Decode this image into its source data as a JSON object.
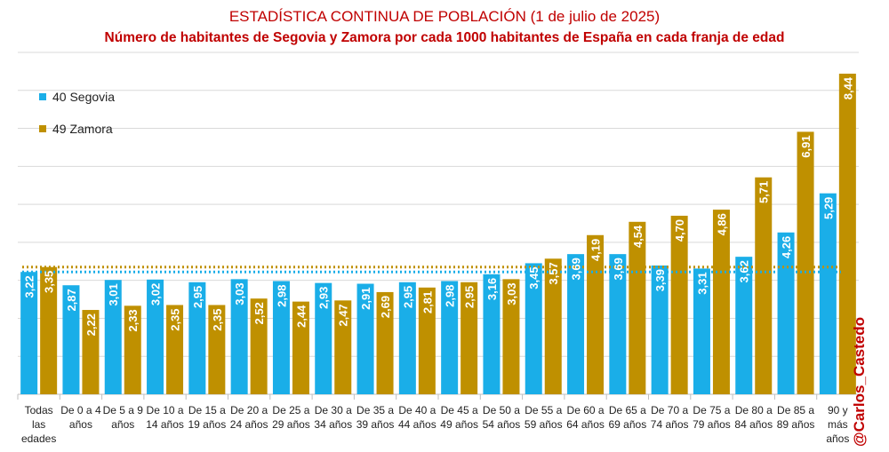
{
  "title": "ESTADÍSTICA CONTINUA DE POBLACIÓN (1 de julio de 2025)",
  "subtitle": "Número de habitantes de Segovia y Zamora por cada 1000 habitantes de España en cada franja de edad",
  "watermark": "@Carlos_Castedo",
  "colors": {
    "segovia": "#1AAEE8",
    "zamora": "#BF9000",
    "grid": "#d9d9d9",
    "axis": "#bfbfbf"
  },
  "chart_data": {
    "type": "bar",
    "title": "ESTADÍSTICA CONTINUA DE POBLACIÓN (1 de julio de 2025)",
    "subtitle": "Número de habitantes de Segovia y Zamora por cada 1000 habitantes de España en cada franja de edad",
    "categories": [
      [
        "Todas",
        "las",
        "edades"
      ],
      [
        "De 0 a 4",
        "años"
      ],
      [
        "De 5 a 9",
        "años"
      ],
      [
        "De 10 a",
        "14 años"
      ],
      [
        "De 15 a",
        "19 años"
      ],
      [
        "De 20 a",
        "24 años"
      ],
      [
        "De 25 a",
        "29 años"
      ],
      [
        "De 30 a",
        "34 años"
      ],
      [
        "De 35 a",
        "39 años"
      ],
      [
        "De 40 a",
        "44 años"
      ],
      [
        "De 45 a",
        "49 años"
      ],
      [
        "De 50 a",
        "54 años"
      ],
      [
        "De 55 a",
        "59 años"
      ],
      [
        "De 60 a",
        "64 años"
      ],
      [
        "De 65 a",
        "69 años"
      ],
      [
        "De 70 a",
        "74 años"
      ],
      [
        "De 75 a",
        "79 años"
      ],
      [
        "De 80 a",
        "84 años"
      ],
      [
        "De 85 a",
        "89 años"
      ],
      [
        "90 y",
        "más",
        "años"
      ]
    ],
    "series": [
      {
        "name": "40 Segovia",
        "values": [
          3.22,
          2.87,
          3.01,
          3.02,
          2.95,
          3.03,
          2.98,
          2.93,
          2.91,
          2.95,
          2.98,
          3.16,
          3.45,
          3.69,
          3.69,
          3.39,
          3.31,
          3.62,
          4.26,
          5.29
        ],
        "labels": [
          "3,22",
          "2,87",
          "3,01",
          "3,02",
          "2,95",
          "3,03",
          "2,98",
          "2,93",
          "2,91",
          "2,95",
          "2,98",
          "3,16",
          "3,45",
          "3,69",
          "3,69",
          "3,39",
          "3,31",
          "3,62",
          "4,26",
          "5,29"
        ]
      },
      {
        "name": "49 Zamora",
        "values": [
          3.35,
          2.22,
          2.33,
          2.35,
          2.35,
          2.52,
          2.44,
          2.47,
          2.69,
          2.81,
          2.95,
          3.03,
          3.57,
          4.19,
          4.54,
          4.7,
          4.86,
          5.71,
          6.91,
          8.44
        ],
        "labels": [
          "3,35",
          "2,22",
          "2,33",
          "2,35",
          "2,35",
          "2,52",
          "2,44",
          "2,47",
          "2,69",
          "2,81",
          "2,95",
          "3,03",
          "3,57",
          "4,19",
          "4,54",
          "4,70",
          "4,86",
          "5,71",
          "6,91",
          "8,44"
        ]
      }
    ],
    "reference_lines": [
      {
        "series": "40 Segovia",
        "value": 3.22,
        "style": "dotted"
      },
      {
        "series": "49 Zamora",
        "value": 3.35,
        "style": "dotted"
      }
    ],
    "ylim": [
      0,
      9
    ],
    "y_grid_step": 1,
    "grid": true,
    "legend": "top-left",
    "xlabel": "",
    "ylabel": ""
  }
}
